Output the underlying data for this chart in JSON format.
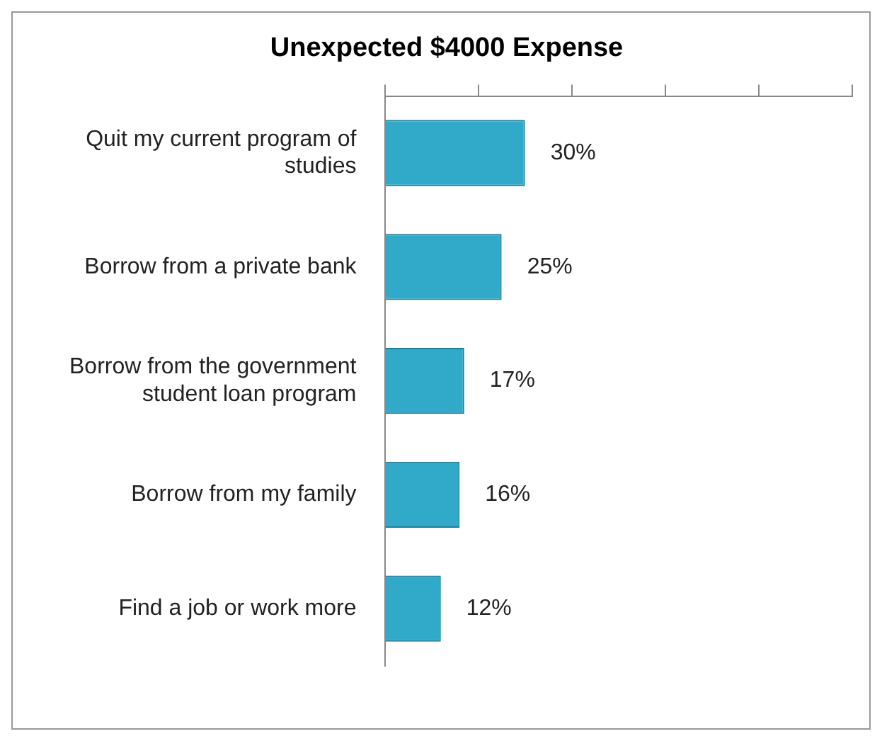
{
  "chart_data": {
    "type": "bar",
    "orientation": "horizontal",
    "title": "Unexpected $4000 Expense",
    "categories": [
      "Quit my current program of studies",
      "Borrow from a private bank",
      "Borrow from the government student loan program",
      "Borrow from my family",
      "Find a job or work more"
    ],
    "values": [
      30,
      25,
      17,
      16,
      12
    ],
    "value_labels": [
      "30%",
      "25%",
      "17%",
      "16%",
      "12%"
    ],
    "color": "#31a9c8",
    "xlim": [
      0,
      100
    ],
    "xticks": [
      {
        "value": 0,
        "label": null
      },
      {
        "value": 20,
        "label": null
      },
      {
        "value": 40,
        "label": null
      },
      {
        "value": 60,
        "label": null
      },
      {
        "value": 80,
        "label": null
      },
      {
        "value": 100,
        "label": null
      }
    ],
    "tick_labels": "y",
    "grid": false,
    "legend": false
  }
}
